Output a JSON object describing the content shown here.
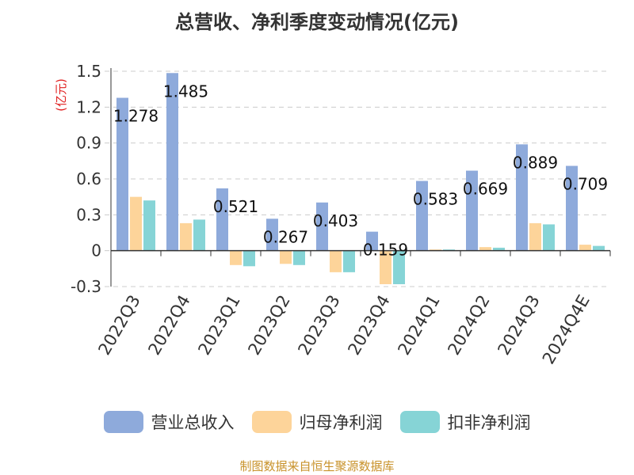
{
  "chart_data": {
    "type": "bar",
    "title": "总营收、净利季度变动情况(亿元)",
    "ylabel": "(亿元)",
    "categories": [
      "2022Q3",
      "2022Q4",
      "2023Q1",
      "2023Q2",
      "2023Q3",
      "2023Q4",
      "2024Q1",
      "2024Q2",
      "2024Q3",
      "2024Q4E"
    ],
    "series": [
      {
        "name": "营业总收入",
        "color": "#8eaadb",
        "values": [
          1.278,
          1.485,
          0.521,
          0.267,
          0.403,
          0.159,
          0.583,
          0.669,
          0.889,
          0.709
        ]
      },
      {
        "name": "归母净利润",
        "color": "#fdd49a",
        "values": [
          0.45,
          0.23,
          -0.12,
          -0.11,
          -0.18,
          -0.28,
          0.01,
          0.03,
          0.23,
          0.05
        ]
      },
      {
        "name": "扣非净利润",
        "color": "#86d4d6",
        "values": [
          0.42,
          0.26,
          -0.13,
          -0.12,
          -0.18,
          -0.28,
          0.01,
          0.025,
          0.22,
          0.04
        ]
      }
    ],
    "data_labels": [
      "1.278",
      "1.485",
      "0.521",
      "0.267",
      "0.403",
      "0.159",
      "0.583",
      "0.669",
      "0.889",
      "0.709"
    ],
    "yticks": [
      "-0.3",
      "0",
      "0.3",
      "0.6",
      "0.9",
      "1.2",
      "1.5"
    ],
    "ylim": [
      -0.3,
      1.5
    ],
    "grid": true,
    "legend_position": "bottom"
  },
  "footer": {
    "source": "制图数据来自恒生聚源数据库"
  }
}
